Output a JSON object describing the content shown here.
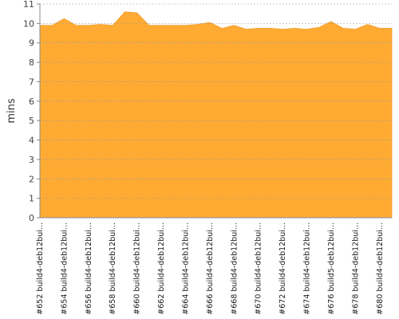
{
  "chart_data": {
    "type": "area",
    "y_label": "mins",
    "categories": [
      "#652 build4-deb12bui...",
      null,
      "#654 build4-deb12bui...",
      null,
      "#656 build4-deb12bui...",
      null,
      "#658 build4-deb12bui...",
      null,
      "#660 build4-deb12bui...",
      null,
      "#662 build4-deb12bui...",
      null,
      "#664 build4-deb12bui...",
      null,
      "#666 build4-deb12bui...",
      null,
      "#668 build4-deb12bui...",
      null,
      "#670 build4-deb12bui...",
      null,
      "#672 build4-deb12bui...",
      null,
      "#674 build4-deb12bui...",
      null,
      "#676 build5-deb12bui...",
      null,
      "#678 build4-deb12bui...",
      null,
      "#680 build4-deb12bui...",
      null
    ],
    "values": [
      9.9,
      9.9,
      10.25,
      9.9,
      9.9,
      9.95,
      9.9,
      10.6,
      10.55,
      9.9,
      9.9,
      9.9,
      9.9,
      9.95,
      10.05,
      9.75,
      9.9,
      9.7,
      9.75,
      9.75,
      9.7,
      9.75,
      9.7,
      9.8,
      10.1,
      9.75,
      9.7,
      9.95,
      9.75,
      9.75
    ],
    "color": "#ffab33",
    "ylim": [
      0,
      11
    ],
    "yticks": [
      0,
      1,
      2,
      3,
      4,
      5,
      6,
      7,
      8,
      9,
      10,
      11
    ],
    "grid": true
  }
}
